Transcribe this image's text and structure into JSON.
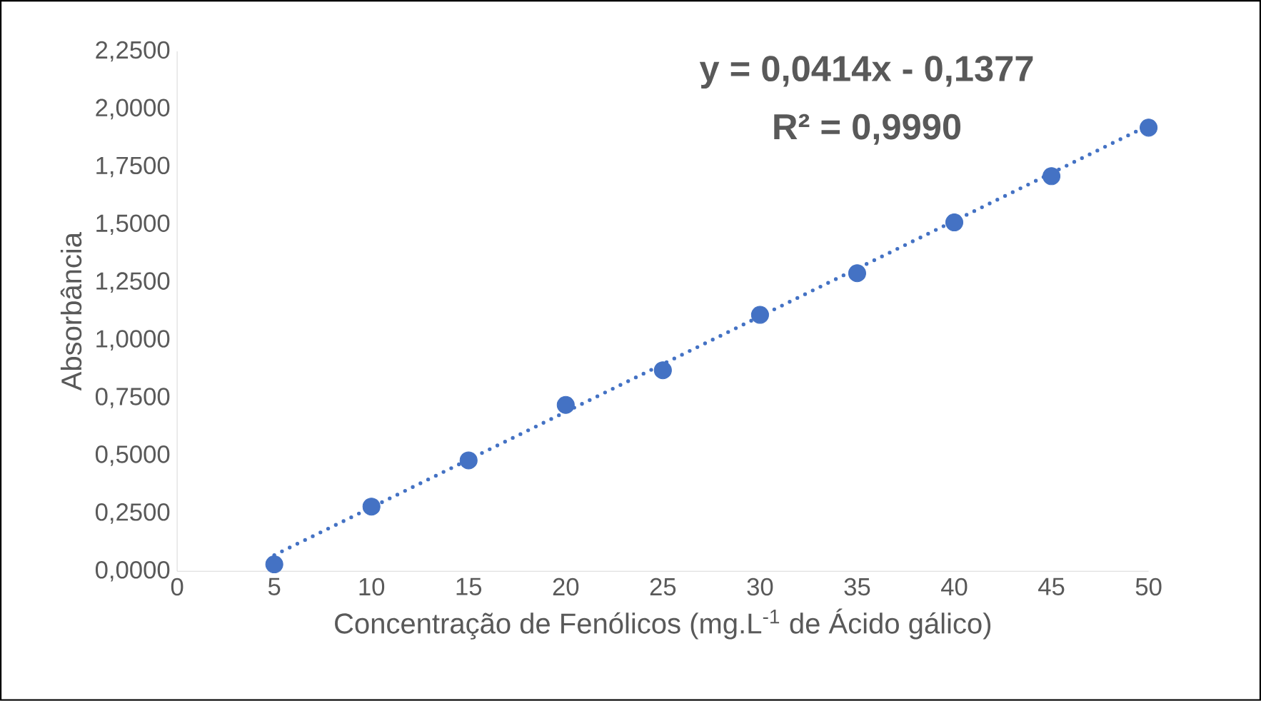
{
  "chart_data": {
    "type": "scatter",
    "xlabel": "Concentração de Fenólicos (mg.L$^{-1}$ de Ácido gálico)",
    "ylabel": "Absorbância",
    "annotations": [
      "y = 0,0414x - 0,1377",
      "R² = 0,9990"
    ],
    "series": [
      {
        "color": "#4472c4",
        "marker": "circle",
        "x": [
          5,
          10,
          15,
          20,
          25,
          30,
          35,
          40,
          45,
          50
        ],
        "values": [
          0.03,
          0.28,
          0.48,
          0.72,
          0.87,
          1.11,
          1.29,
          1.51,
          1.71,
          1.92
        ]
      },
      {
        "type": "line",
        "color": "#4472c4",
        "line_style": "dotted",
        "marker": "none",
        "x": [
          5,
          50
        ],
        "values": [
          0.07,
          1.93
        ]
      }
    ],
    "xlim": [
      0,
      50
    ],
    "xticks": [
      0,
      5,
      10,
      15,
      20,
      25,
      30,
      35,
      40,
      45,
      50
    ],
    "ylim": [
      0,
      2.25
    ],
    "yticks": [
      {
        "value": 0,
        "label": "0,0000"
      },
      {
        "value": 0.25,
        "label": "0,2500"
      },
      {
        "value": 0.5,
        "label": "0,5000"
      },
      {
        "value": 0.75,
        "label": "0,7500"
      },
      {
        "value": 1,
        "label": "1,0000"
      },
      {
        "value": 1.25,
        "label": "1,2500"
      },
      {
        "value": 1.5,
        "label": "1,5000"
      },
      {
        "value": 1.75,
        "label": "1,7500"
      },
      {
        "value": 2,
        "label": "2,0000"
      },
      {
        "value": 2.25,
        "label": "2,2500"
      }
    ],
    "grid": false
  }
}
